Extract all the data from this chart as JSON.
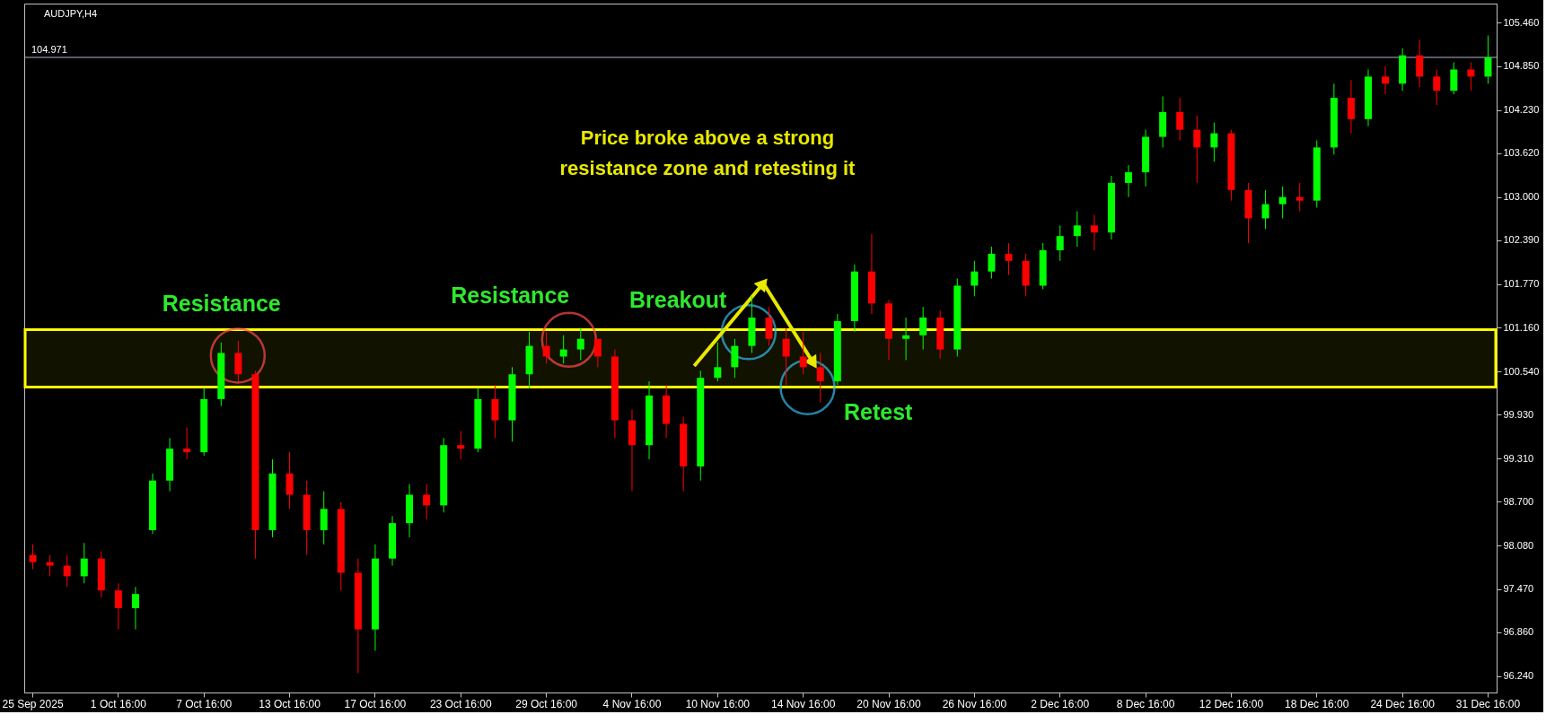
{
  "chart_data": {
    "type": "candlestick",
    "title": "AUDJPY,H4",
    "categories": [
      "25 Sep 2025",
      null,
      null,
      null,
      null,
      "1 Oct 16:00",
      null,
      null,
      null,
      null,
      "7 Oct 16:00",
      null,
      null,
      null,
      null,
      "13 Oct 16:00",
      null,
      null,
      null,
      null,
      "17 Oct 16:00",
      null,
      null,
      null,
      null,
      "23 Oct 16:00",
      null,
      null,
      null,
      null,
      "29 Oct 16:00",
      null,
      null,
      null,
      null,
      "4 Nov 16:00",
      null,
      null,
      null,
      null,
      "10 Nov 16:00",
      null,
      null,
      null,
      null,
      "14 Nov 16:00",
      null,
      null,
      null,
      null,
      "20 Nov 16:00",
      null,
      null,
      null,
      null,
      "26 Nov 16:00",
      null,
      null,
      null,
      null,
      "2 Dec 16:00",
      null,
      null,
      null,
      null,
      "8 Dec 16:00",
      null,
      null,
      null,
      null,
      "12 Dec 16:00",
      null,
      null,
      null,
      null,
      "18 Dec 16:00",
      null,
      null,
      null,
      null,
      "24 Dec 16:00",
      null,
      null,
      null,
      null,
      "31 Dec 16:00"
    ],
    "ohlc": [
      [
        97.95,
        98.1,
        97.75,
        97.85
      ],
      [
        97.85,
        97.95,
        97.65,
        97.8
      ],
      [
        97.8,
        97.95,
        97.5,
        97.65
      ],
      [
        97.65,
        98.12,
        97.55,
        97.9
      ],
      [
        97.9,
        98.0,
        97.35,
        97.45
      ],
      [
        97.45,
        97.55,
        96.9,
        97.2
      ],
      [
        97.2,
        97.5,
        96.9,
        97.4
      ],
      [
        98.3,
        99.1,
        98.25,
        99.0
      ],
      [
        99.0,
        99.6,
        98.85,
        99.45
      ],
      [
        99.45,
        99.75,
        99.3,
        99.4
      ],
      [
        99.4,
        100.3,
        99.35,
        100.15
      ],
      [
        100.15,
        100.95,
        100.05,
        100.8
      ],
      [
        100.8,
        100.97,
        100.4,
        100.5
      ],
      [
        100.5,
        100.55,
        97.9,
        98.3
      ],
      [
        98.3,
        99.3,
        98.2,
        99.1
      ],
      [
        99.1,
        99.4,
        98.6,
        98.8
      ],
      [
        98.8,
        99.0,
        97.95,
        98.3
      ],
      [
        98.3,
        98.85,
        98.1,
        98.6
      ],
      [
        98.6,
        98.7,
        97.45,
        97.7
      ],
      [
        97.7,
        97.9,
        96.28,
        96.9
      ],
      [
        96.9,
        98.1,
        96.6,
        97.9
      ],
      [
        97.9,
        98.5,
        97.8,
        98.4
      ],
      [
        98.4,
        98.95,
        98.2,
        98.8
      ],
      [
        98.8,
        98.95,
        98.45,
        98.65
      ],
      [
        98.65,
        99.6,
        98.55,
        99.5
      ],
      [
        99.5,
        99.7,
        99.3,
        99.45
      ],
      [
        99.45,
        100.3,
        99.4,
        100.15
      ],
      [
        100.15,
        100.35,
        99.6,
        99.85
      ],
      [
        99.85,
        100.6,
        99.55,
        100.5
      ],
      [
        100.5,
        101.1,
        100.3,
        100.9
      ],
      [
        100.9,
        101.1,
        100.65,
        100.75
      ],
      [
        100.75,
        101.05,
        100.65,
        100.85
      ],
      [
        100.85,
        101.15,
        100.7,
        101.0
      ],
      [
        101.0,
        101.0,
        100.6,
        100.75
      ],
      [
        100.75,
        100.85,
        99.6,
        99.85
      ],
      [
        99.85,
        100.0,
        98.85,
        99.5
      ],
      [
        99.5,
        100.4,
        99.3,
        100.2
      ],
      [
        100.2,
        100.35,
        99.6,
        99.8
      ],
      [
        99.8,
        99.9,
        98.85,
        99.2
      ],
      [
        99.2,
        100.55,
        99.0,
        100.45
      ],
      [
        100.45,
        100.95,
        100.4,
        100.6
      ],
      [
        100.6,
        101.0,
        100.45,
        100.9
      ],
      [
        100.9,
        101.6,
        100.8,
        101.3
      ],
      [
        101.3,
        101.45,
        100.9,
        101.0
      ],
      [
        101.0,
        101.15,
        100.35,
        100.75
      ],
      [
        100.75,
        101.1,
        100.5,
        100.6
      ],
      [
        100.6,
        100.8,
        100.1,
        100.4
      ],
      [
        100.4,
        101.35,
        100.35,
        101.25
      ],
      [
        101.25,
        102.05,
        101.1,
        101.95
      ],
      [
        101.95,
        102.48,
        101.35,
        101.5
      ],
      [
        101.5,
        101.55,
        100.7,
        101.0
      ],
      [
        101.0,
        101.3,
        100.7,
        101.05
      ],
      [
        101.05,
        101.45,
        100.85,
        101.3
      ],
      [
        101.3,
        101.4,
        100.72,
        100.85
      ],
      [
        100.85,
        101.85,
        100.75,
        101.75
      ],
      [
        101.75,
        102.1,
        101.6,
        101.95
      ],
      [
        101.95,
        102.3,
        101.85,
        102.2
      ],
      [
        102.2,
        102.35,
        101.9,
        102.1
      ],
      [
        102.1,
        102.2,
        101.6,
        101.75
      ],
      [
        101.75,
        102.35,
        101.7,
        102.25
      ],
      [
        102.25,
        102.6,
        102.1,
        102.45
      ],
      [
        102.45,
        102.8,
        102.3,
        102.6
      ],
      [
        102.6,
        102.75,
        102.25,
        102.5
      ],
      [
        102.5,
        103.3,
        102.4,
        103.2
      ],
      [
        103.2,
        103.45,
        103.0,
        103.35
      ],
      [
        103.35,
        103.95,
        103.15,
        103.85
      ],
      [
        103.85,
        104.42,
        103.7,
        104.2
      ],
      [
        104.2,
        104.4,
        103.8,
        103.95
      ],
      [
        103.95,
        104.15,
        103.2,
        103.7
      ],
      [
        103.7,
        104.05,
        103.5,
        103.9
      ],
      [
        103.9,
        103.95,
        102.95,
        103.1
      ],
      [
        103.1,
        103.2,
        102.35,
        102.7
      ],
      [
        102.7,
        103.1,
        102.55,
        102.9
      ],
      [
        102.9,
        103.15,
        102.7,
        103.0
      ],
      [
        103.0,
        103.2,
        102.8,
        102.95
      ],
      [
        102.95,
        103.8,
        102.85,
        103.7
      ],
      [
        103.7,
        104.6,
        103.6,
        104.4
      ],
      [
        104.4,
        104.65,
        103.9,
        104.1
      ],
      [
        104.1,
        104.8,
        104.0,
        104.7
      ],
      [
        104.7,
        104.85,
        104.45,
        104.6
      ],
      [
        104.6,
        105.1,
        104.5,
        105.0
      ],
      [
        105.0,
        105.22,
        104.55,
        104.7
      ],
      [
        104.7,
        104.8,
        104.3,
        104.5
      ],
      [
        104.5,
        104.9,
        104.45,
        104.8
      ],
      [
        104.8,
        104.9,
        104.5,
        104.7
      ],
      [
        104.7,
        105.28,
        104.6,
        104.971
      ]
    ],
    "colors": [
      "#ff0000",
      "#ff0000",
      "#ff0000",
      "#00ff00",
      "#ff0000",
      "#ff0000",
      "#00ff00",
      "#00ff00",
      "#00ff00",
      "#ff0000",
      "#00ff00",
      "#00ff00",
      "#ff0000",
      "#ff0000",
      "#00ff00",
      "#ff0000",
      "#ff0000",
      "#00ff00",
      "#ff0000",
      "#ff0000",
      "#00ff00",
      "#00ff00",
      "#00ff00",
      "#ff0000",
      "#00ff00",
      "#ff0000",
      "#00ff00",
      "#ff0000",
      "#00ff00",
      "#00ff00",
      "#ff0000",
      "#00ff00",
      "#00ff00",
      "#ff0000",
      "#ff0000",
      "#ff0000",
      "#00ff00",
      "#ff0000",
      "#ff0000",
      "#00ff00",
      "#00ff00",
      "#00ff00",
      "#00ff00",
      "#ff0000",
      "#ff0000",
      "#ff0000",
      "#ff0000",
      "#00ff00",
      "#00ff00",
      "#ff0000",
      "#ff0000",
      "#00ff00",
      "#00ff00",
      "#ff0000",
      "#00ff00",
      "#00ff00",
      "#00ff00",
      "#ff0000",
      "#ff0000",
      "#00ff00",
      "#00ff00",
      "#00ff00",
      "#ff0000",
      "#00ff00",
      "#00ff00",
      "#00ff00",
      "#00ff00",
      "#ff0000",
      "#ff0000",
      "#00ff00",
      "#ff0000",
      "#ff0000",
      "#00ff00",
      "#00ff00",
      "#ff0000",
      "#00ff00",
      "#00ff00",
      "#ff0000",
      "#00ff00",
      "#ff0000",
      "#00ff00",
      "#ff0000",
      "#ff0000",
      "#00ff00",
      "#ff0000",
      "#00ff00"
    ],
    "ylim": [
      96.01,
      105.73
    ],
    "yticks": [
      {
        "value": 105.46,
        "label": "105.460"
      },
      {
        "value": 104.85,
        "label": "104.850"
      },
      {
        "value": 104.23,
        "label": "104.230"
      },
      {
        "value": 103.62,
        "label": "103.620"
      },
      {
        "value": 103.0,
        "label": "103.000"
      },
      {
        "value": 102.39,
        "label": "102.390"
      },
      {
        "value": 101.77,
        "label": "101.770"
      },
      {
        "value": 101.16,
        "label": "101.160"
      },
      {
        "value": 100.54,
        "label": "100.540"
      },
      {
        "value": 99.93,
        "label": "99.930"
      },
      {
        "value": 99.31,
        "label": "99.310"
      },
      {
        "value": 98.7,
        "label": "98.700"
      },
      {
        "value": 98.08,
        "label": "98.080"
      },
      {
        "value": 97.47,
        "label": "97.470"
      },
      {
        "value": 96.86,
        "label": "96.860"
      },
      {
        "value": 96.24,
        "label": "96.240"
      }
    ],
    "ref_lines": [
      {
        "axis": "y",
        "value": 104.971,
        "label": "104.971",
        "color": "#b4b4c8"
      }
    ],
    "bands": [
      {
        "axis": "y",
        "from": 100.32,
        "to": 101.13,
        "color": "#ffff00"
      }
    ],
    "annotations": [
      "Price broke above a strong\nresistance zone and retesting it",
      "Resistance",
      "Resistance",
      "Breakout",
      "Retest"
    ],
    "grid": false
  }
}
